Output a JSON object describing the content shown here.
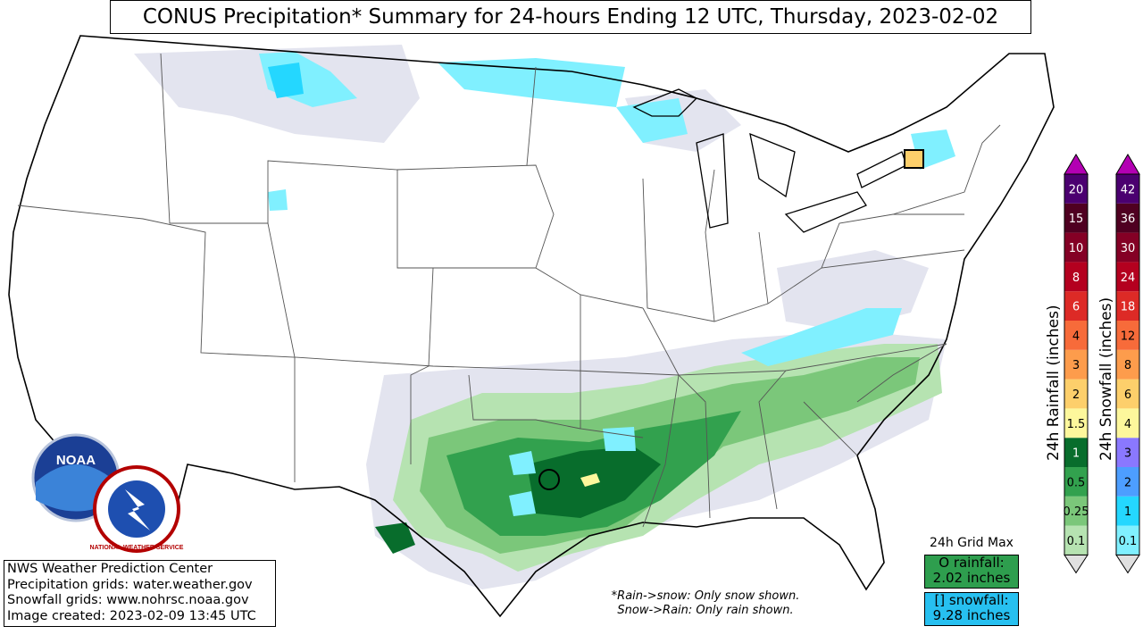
{
  "title": "CONUS Precipitation* Summary for 24-hours Ending 12 UTC, Thursday, 2023-02-02",
  "info": {
    "line1": "NWS Weather Prediction Center",
    "line2": "Precipitation grids: water.weather.gov",
    "line3": "Snowfall grids: www.nohrsc.noaa.gov",
    "line4": "Image created: 2023-02-09 13:45 UTC"
  },
  "note": {
    "line1": "*Rain->snow: Only snow shown.",
    "line2": "Snow->Rain: Only rain shown."
  },
  "grid_max": {
    "title": "24h Grid Max",
    "rain_line1": "O rainfall:",
    "rain_line2": "2.02 inches",
    "snow_line1": "[] snowfall:",
    "snow_line2": "9.28 inches",
    "rain_color": "#2e9e4e",
    "snow_color": "#27c0f0"
  },
  "logos": {
    "noaa_text": "NOAA",
    "nws_text": "NATIONAL WEATHER SERVICE"
  },
  "rain_scale": {
    "label": "24h Rainfall (inches)",
    "ticks": [
      "0.1",
      "0.25",
      "0.5",
      "1",
      "1.5",
      "2",
      "3",
      "4",
      "6",
      "8",
      "10",
      "15",
      "20"
    ],
    "colors": [
      "#b6e3b1",
      "#7bc77a",
      "#32a14e",
      "#086d2c",
      "#fdf79c",
      "#fdcf6b",
      "#fd9c4c",
      "#f76b3a",
      "#dd2a26",
      "#b4001f",
      "#840025",
      "#4f0021",
      "#4b0070",
      "#b300b3"
    ]
  },
  "snow_scale": {
    "label": "24h Snowfall (inches)",
    "ticks": [
      "0.1",
      "1",
      "2",
      "3",
      "4",
      "6",
      "8",
      "12",
      "18",
      "24",
      "30",
      "36",
      "42"
    ],
    "colors": [
      "#80f0ff",
      "#24d7ff",
      "#4d9eff",
      "#8a78ff",
      "#fdf79c",
      "#fdcf6b",
      "#fd9c4c",
      "#f76b3a",
      "#dd2a26",
      "#b4001f",
      "#840025",
      "#4f0021",
      "#4b0070",
      "#b300b3"
    ]
  }
}
